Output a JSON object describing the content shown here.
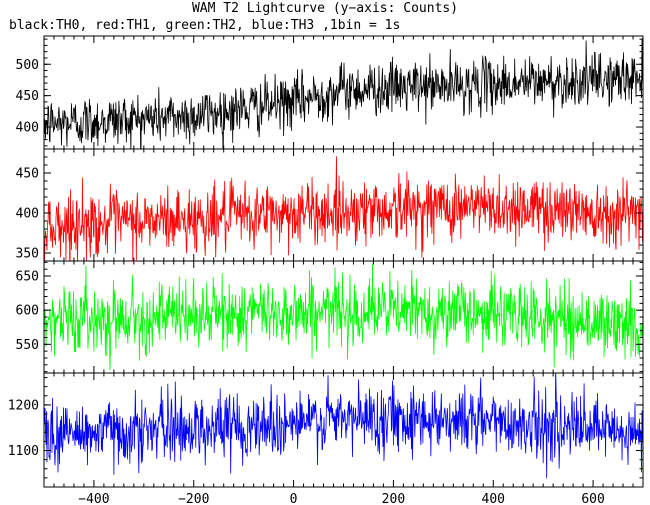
{
  "title": "WAM T2 Lightcurve (y−axis: Counts)",
  "subtitle": "black:TH0, red:TH1, green:TH2, blue:TH3 ,1bin = 1s",
  "chart_data": {
    "type": "line",
    "xlim": [
      -500,
      700
    ],
    "xticks": [
      -400,
      -200,
      0,
      200,
      400,
      600
    ],
    "bin_size_s": 1,
    "panels": [
      {
        "series_name": "TH0",
        "color": "#000000",
        "ylim": [
          365,
          545
        ],
        "yticks": [
          400,
          450,
          500
        ],
        "trend": {
          "x": [
            -500,
            -200,
            0,
            100,
            300,
            500,
            700
          ],
          "y": [
            405,
            418,
            440,
            460,
            465,
            472,
            478
          ]
        },
        "noise_sd": 21
      },
      {
        "series_name": "TH1",
        "color": "#ff0000",
        "ylim": [
          340,
          480
        ],
        "yticks": [
          350,
          400,
          450
        ],
        "trend": {
          "x": [
            -500,
            -200,
            0,
            300,
            500,
            700
          ],
          "y": [
            384,
            392,
            400,
            408,
            406,
            400
          ]
        },
        "noise_sd": 20
      },
      {
        "series_name": "TH2",
        "color": "#00ff00",
        "ylim": [
          508,
          672
        ],
        "yticks": [
          550,
          600,
          650
        ],
        "trend": {
          "x": [
            -500,
            -200,
            0,
            200,
            400,
            600,
            700
          ],
          "y": [
            587,
            592,
            598,
            600,
            596,
            583,
            572
          ]
        },
        "noise_sd": 24
      },
      {
        "series_name": "TH3",
        "color": "#0000ff",
        "ylim": [
          1020,
          1270
        ],
        "yticks": [
          1100,
          1200
        ],
        "trend": {
          "x": [
            -500,
            -200,
            0,
            200,
            400,
            600,
            700
          ],
          "y": [
            1135,
            1150,
            1160,
            1175,
            1165,
            1145,
            1130
          ]
        },
        "noise_sd": 36
      }
    ]
  }
}
